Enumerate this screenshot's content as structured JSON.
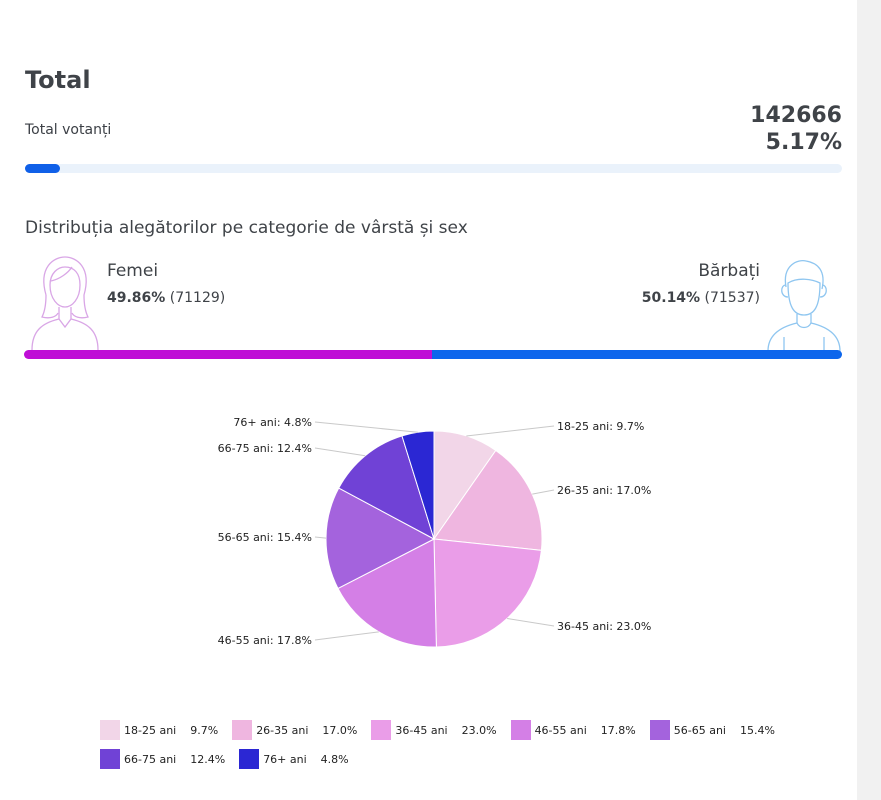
{
  "header": {
    "title": "Total"
  },
  "total": {
    "label": "Total votanți",
    "count": "142666",
    "percent": "5.17%",
    "fill_fraction": 0.0517
  },
  "distribution": {
    "title": "Distribuția alegătorilor pe categorie de vârstă și sex",
    "female": {
      "label": "Femei",
      "percent": "49.86%",
      "count": "(71129)",
      "color": "#bf0ed6",
      "share": 0.4986
    },
    "male": {
      "label": "Bărbați",
      "percent": "50.14%",
      "count": "(71537)",
      "color": "#0d66ec",
      "share": 0.5014
    }
  },
  "colors": {
    "accent": "#1060e8",
    "female_icon": "#d9a6e6",
    "male_icon": "#8fc6f0"
  },
  "chart_data": {
    "type": "pie",
    "categories": [
      "18-25 ani",
      "26-35 ani",
      "36-45 ani",
      "46-55 ani",
      "56-65 ani",
      "66-75 ani",
      "76+ ani"
    ],
    "values": [
      9.7,
      17.0,
      23.0,
      17.8,
      15.4,
      12.4,
      4.8
    ],
    "value_labels": [
      "9.7%",
      "17.0%",
      "23.0%",
      "17.8%",
      "15.4%",
      "12.4%",
      "4.8%"
    ],
    "data_labels": [
      "18-25 ani: 9.7%",
      "26-35 ani: 17.0%",
      "36-45 ani: 23.0%",
      "46-55 ani: 17.8%",
      "56-65 ani: 15.4%",
      "66-75 ani: 12.4%",
      "76+ ani: 4.8%"
    ],
    "colors": [
      "#f2d6e8",
      "#efb6e0",
      "#ea9de8",
      "#d47fe6",
      "#a463dd",
      "#7042d6",
      "#2b27d3"
    ],
    "legend_position": "bottom"
  }
}
